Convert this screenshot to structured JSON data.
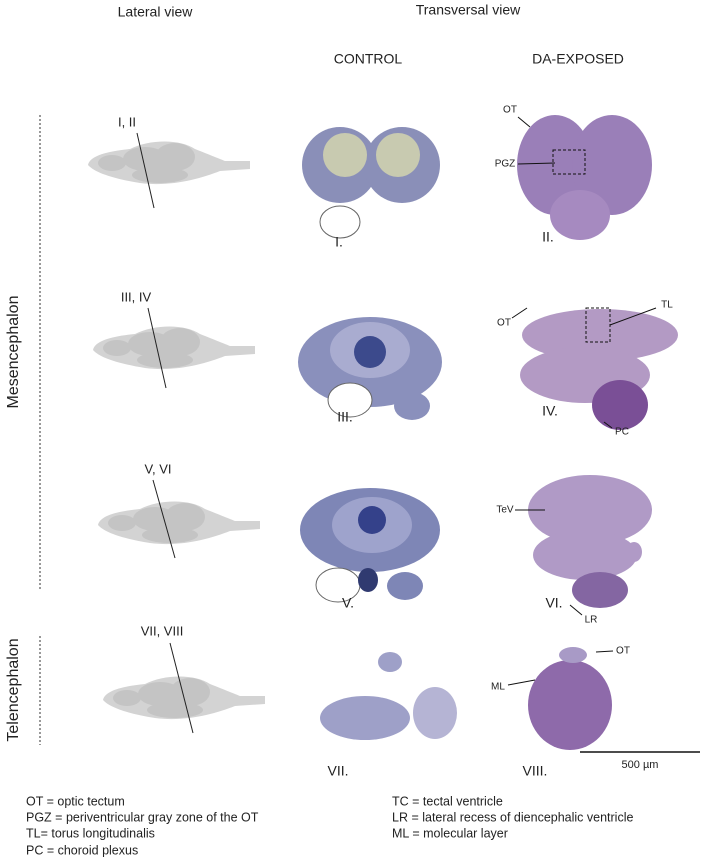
{
  "headers": {
    "lateral": "Lateral view",
    "transversal": "Transversal view",
    "control": "CONTROL",
    "exposed": "DA-EXPOSED"
  },
  "regions": [
    "Mesencephalon",
    "Telencephalon"
  ],
  "rows": [
    {
      "plane": "I, II",
      "control": "I.",
      "exposed": "II.",
      "annotations": [
        "OT",
        "PGZ"
      ]
    },
    {
      "plane": "III, IV",
      "control": "III.",
      "exposed": "IV.",
      "annotations": [
        "OT",
        "TL",
        "PC"
      ]
    },
    {
      "plane": "V, VI",
      "control": "V.",
      "exposed": "VI.",
      "annotations": [
        "TeV",
        "LR"
      ]
    },
    {
      "plane": "VII, VIII",
      "control": "VII.",
      "exposed": "VIII.",
      "annotations": [
        "OT",
        "ML"
      ]
    }
  ],
  "scale_bar": "500 µm",
  "legend": {
    "left": [
      "OT = optic tectum",
      "PGZ = periventricular gray zone of the OT",
      "TL= torus longitudinalis",
      "PC = choroid plexus"
    ],
    "right": [
      "TC = tectal ventricle",
      "LR = lateral recess of  diencephalic ventricle",
      "ML = molecular layer"
    ]
  }
}
